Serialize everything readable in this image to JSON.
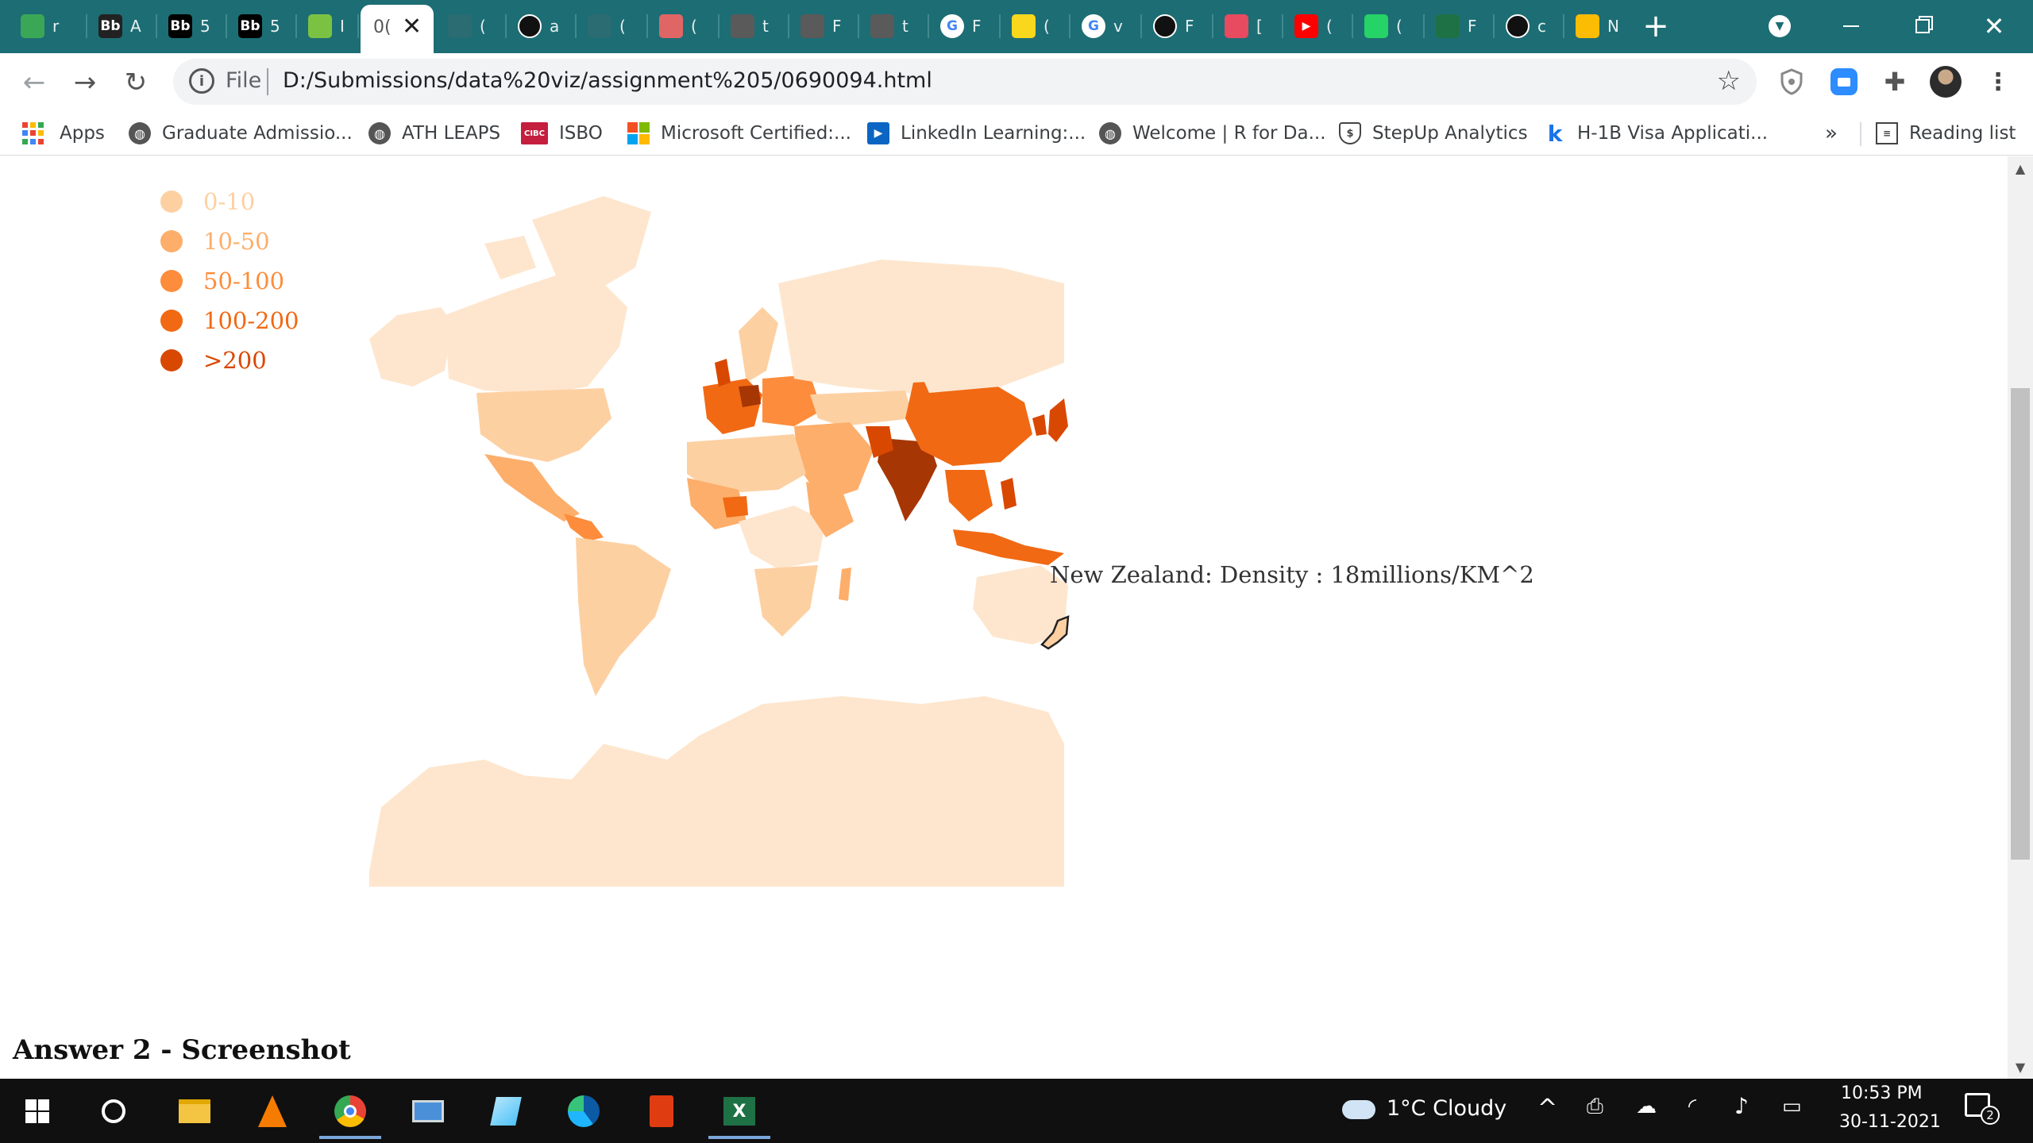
{
  "browser": {
    "tabs": [
      {
        "label": "r",
        "icon": "globe-icon",
        "color": "#3aa757"
      },
      {
        "label": "A",
        "icon": "blackboard-icon",
        "color": "#222222"
      },
      {
        "label": "5",
        "icon": "blackboard-icon",
        "color": "#000000"
      },
      {
        "label": "5",
        "icon": "blackboard-icon",
        "color": "#000000"
      },
      {
        "label": "I",
        "icon": "leaf-icon",
        "color": "#7cc242"
      },
      {
        "label": "0(",
        "icon": "document-icon",
        "active": true
      },
      {
        "label": "(",
        "icon": "scribble-icon",
        "color": "#2b6b72"
      },
      {
        "label": "a",
        "icon": "github-icon",
        "color": "#111111"
      },
      {
        "label": "(",
        "icon": "pulse-icon",
        "color": "#2b6b72"
      },
      {
        "label": "(",
        "icon": "cube-icon",
        "color": "#e06666"
      },
      {
        "label": "t",
        "icon": "blocked-icon",
        "color": "#5a5a5a"
      },
      {
        "label": "F",
        "icon": "blocked-icon",
        "color": "#5a5a5a"
      },
      {
        "label": "t",
        "icon": "blocked-icon",
        "color": "#5a5a5a"
      },
      {
        "label": "F",
        "icon": "google-icon",
        "color": "#ffffff"
      },
      {
        "label": "(",
        "icon": "tag-icon",
        "color": "#f9d71c"
      },
      {
        "label": "v",
        "icon": "google-icon",
        "color": "#ffffff"
      },
      {
        "label": "F",
        "icon": "github-icon",
        "color": "#111111"
      },
      {
        "label": "[",
        "icon": "butterfly-icon",
        "color": "#e84a5f"
      },
      {
        "label": "(",
        "icon": "youtube-icon",
        "color": "#ff0000"
      },
      {
        "label": "(",
        "icon": "whatsapp-icon",
        "color": "#25d366"
      },
      {
        "label": "F",
        "icon": "word-icon",
        "color": "#1e7145"
      },
      {
        "label": "c",
        "icon": "github-icon",
        "color": "#111111"
      },
      {
        "label": "N",
        "icon": "drive-icon",
        "color": "#fbbc04"
      }
    ],
    "new_tab_label": "+",
    "url_scheme": "File",
    "url": "D:/Submissions/data%20viz/assignment%205/0690094.html"
  },
  "bookmarks": {
    "apps_label": "Apps",
    "items": [
      {
        "label": "Graduate Admissio...",
        "icon": "globe-icon"
      },
      {
        "label": "ATH LEAPS",
        "icon": "globe-icon"
      },
      {
        "label": "ISBO",
        "icon": "cibc-icon"
      },
      {
        "label": "Microsoft Certified:...",
        "icon": "microsoft-icon"
      },
      {
        "label": "LinkedIn Learning:...",
        "icon": "linkedin-learning-icon"
      },
      {
        "label": "Welcome | R for Da...",
        "icon": "globe-icon"
      },
      {
        "label": "StepUp Analytics",
        "icon": "shield-icon"
      },
      {
        "label": "H-1B Visa Applicati...",
        "icon": "k-icon"
      }
    ],
    "overflow_label": "»",
    "reading_list_label": "Reading list"
  },
  "legend": {
    "items": [
      {
        "label": "0-10",
        "color": "#fdd0a2"
      },
      {
        "label": "10-50",
        "color": "#fdae6b"
      },
      {
        "label": "50-100",
        "color": "#fd8d3c"
      },
      {
        "label": "100-200",
        "color": "#f16913"
      },
      {
        "label": ">200",
        "color": "#d94801"
      }
    ]
  },
  "tooltip": "New Zealand: Density : 18millions/KM^2",
  "answer_heading": "Answer 2 - Screenshot",
  "taskbar": {
    "weather": "1°C  Cloudy",
    "time": "10:53 PM",
    "date": "30-11-2021",
    "notification_count": "2"
  }
}
